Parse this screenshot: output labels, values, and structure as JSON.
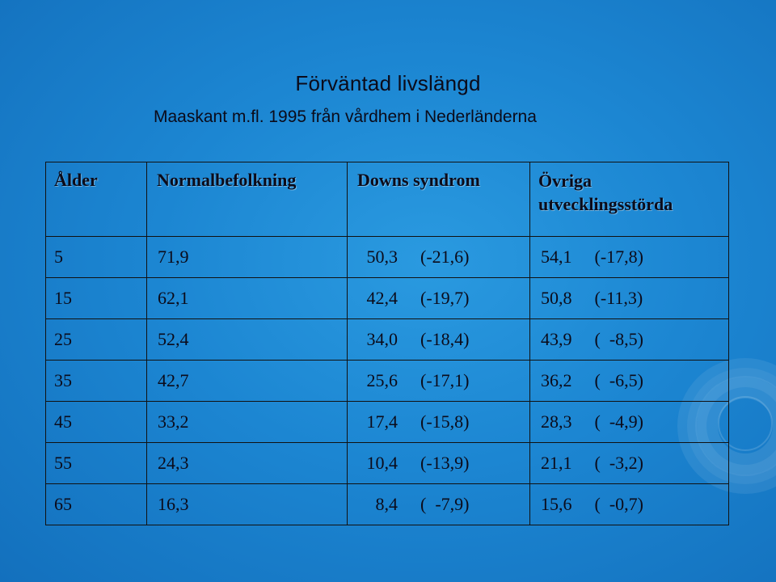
{
  "title": "Förväntad livslängd",
  "subtitle": "Maaskant m.fl. 1995 från vårdhem i Nederländerna",
  "table": {
    "headers": [
      "Ålder",
      "Normalbefolkning",
      "Downs syndrom",
      "Övriga utvecklingsstörda"
    ],
    "rows": [
      {
        "age": "5",
        "normal": "71,9",
        "downs": "50,3",
        "downs_ci": "(-21,6)",
        "other": "54,1",
        "other_ci": "(-17,8)"
      },
      {
        "age": "15",
        "normal": "62,1",
        "downs": "42,4",
        "downs_ci": "(-19,7)",
        "other": "50,8",
        "other_ci": "(-11,3)"
      },
      {
        "age": "25",
        "normal": "52,4",
        "downs": "34,0",
        "downs_ci": "(-18,4)",
        "other": "43,9",
        "other_ci": "(  -8,5)"
      },
      {
        "age": "35",
        "normal": "42,7",
        "downs": "25,6",
        "downs_ci": "(-17,1)",
        "other": "36,2",
        "other_ci": "(  -6,5)"
      },
      {
        "age": "45",
        "normal": "33,2",
        "downs": "17,4",
        "downs_ci": "(-15,8)",
        "other": "28,3",
        "other_ci": "(  -4,9)"
      },
      {
        "age": "55",
        "normal": "24,3",
        "downs": "10,4",
        "downs_ci": "(-13,9)",
        "other": "21,1",
        "other_ci": "(  -3,2)"
      },
      {
        "age": "65",
        "normal": "16,3",
        "downs": "8,4",
        "downs_ci": "(  -7,9)",
        "other": "15,6",
        "other_ci": "(  -0,7)"
      }
    ]
  },
  "colors": {
    "background": "#1c86d2",
    "text": "#0b0b1a",
    "border": "#111111"
  }
}
